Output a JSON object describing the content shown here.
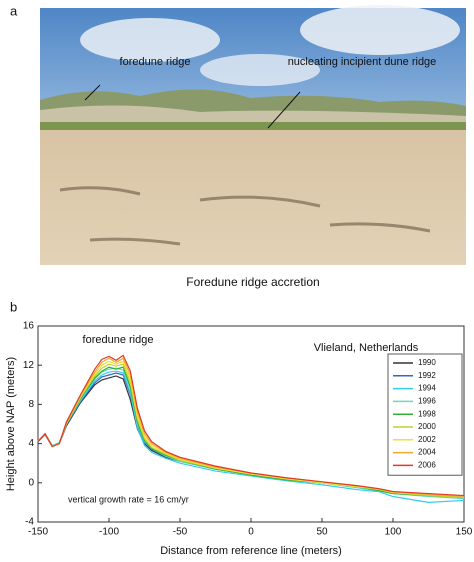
{
  "panel_a": {
    "label": "a",
    "annotations": [
      "foredune ridge",
      "nucleating incipient dune ridge"
    ],
    "caption": "Foredune ridge accretion"
  },
  "chart_data": {
    "type": "line",
    "panel_label": "b",
    "x_label": "Distance from reference line (meters)",
    "y_label": "Height above NAP (meters)",
    "annotations": [
      "foredune ridge",
      "Vlieland, Netherlands",
      "vertical growth rate = 16 cm/yr"
    ],
    "xlim": [
      -150,
      150
    ],
    "xticks": [
      -150,
      -100,
      -50,
      0,
      50,
      100,
      150
    ],
    "ylim": [
      -4,
      16
    ],
    "yticks": [
      -4,
      0,
      4,
      8,
      12,
      16
    ],
    "legend": "right",
    "x": [
      -150,
      -145,
      -140,
      -135,
      -130,
      -120,
      -110,
      -105,
      -100,
      -95,
      -90,
      -85,
      -80,
      -75,
      -70,
      -60,
      -50,
      -25,
      0,
      25,
      50,
      75,
      90,
      100,
      125,
      150
    ],
    "series": [
      {
        "name": "1990",
        "color": "#333333",
        "values": [
          4.2,
          5.0,
          3.8,
          4.0,
          5.8,
          8.2,
          10.0,
          10.5,
          10.7,
          10.9,
          10.6,
          8.5,
          5.5,
          4.0,
          3.3,
          2.6,
          2.2,
          1.4,
          0.8,
          0.4,
          0.0,
          -0.4,
          -0.7,
          -1.0,
          -1.3,
          -1.5
        ]
      },
      {
        "name": "1992",
        "color": "#3366cc",
        "values": [
          4.2,
          4.9,
          3.7,
          4.0,
          5.9,
          8.3,
          10.2,
          10.8,
          11.0,
          11.2,
          11.0,
          9.0,
          5.8,
          4.1,
          3.4,
          2.7,
          2.2,
          1.4,
          0.8,
          0.3,
          0.0,
          -0.5,
          -0.8,
          -1.1,
          -1.3,
          -1.6
        ]
      },
      {
        "name": "1994",
        "color": "#33ccee",
        "values": [
          4.3,
          4.9,
          3.8,
          4.1,
          6.0,
          8.4,
          10.4,
          11.0,
          11.3,
          11.4,
          11.2,
          9.2,
          5.6,
          3.8,
          3.1,
          2.5,
          2.0,
          1.2,
          0.7,
          0.2,
          -0.2,
          -0.7,
          -0.9,
          -1.4,
          -2.0,
          -1.8
        ]
      },
      {
        "name": "1996",
        "color": "#66d9c0",
        "values": [
          4.3,
          5.0,
          3.8,
          4.1,
          6.0,
          8.5,
          10.6,
          11.3,
          11.6,
          11.7,
          11.5,
          9.6,
          6.0,
          4.2,
          3.5,
          2.7,
          2.2,
          1.4,
          0.8,
          0.3,
          0.0,
          -0.5,
          -0.8,
          -1.1,
          -1.4,
          -1.6
        ]
      },
      {
        "name": "1998",
        "color": "#33b033",
        "values": [
          4.2,
          5.0,
          3.7,
          4.0,
          6.0,
          8.6,
          10.7,
          11.4,
          11.8,
          11.6,
          11.8,
          9.8,
          6.2,
          4.3,
          3.5,
          2.8,
          2.3,
          1.4,
          0.8,
          0.3,
          0.0,
          -0.4,
          -0.8,
          -1.1,
          -1.3,
          -1.5
        ]
      },
      {
        "name": "2000",
        "color": "#b8d630",
        "values": [
          4.2,
          5.0,
          3.7,
          4.0,
          6.0,
          8.7,
          10.9,
          11.7,
          12.1,
          11.9,
          12.1,
          10.2,
          6.5,
          4.5,
          3.6,
          2.9,
          2.3,
          1.5,
          0.9,
          0.4,
          0.0,
          -0.4,
          -0.7,
          -1.0,
          -1.3,
          -1.5
        ]
      },
      {
        "name": "2002",
        "color": "#f2e033",
        "values": [
          4.2,
          5.0,
          3.7,
          4.0,
          6.1,
          8.8,
          11.1,
          12.0,
          12.4,
          12.1,
          12.4,
          10.6,
          6.8,
          4.7,
          3.8,
          3.0,
          2.4,
          1.5,
          0.9,
          0.4,
          0.0,
          -0.4,
          -0.6,
          -1.0,
          -1.2,
          -1.4
        ]
      },
      {
        "name": "2004",
        "color": "#f2a830",
        "values": [
          4.2,
          5.0,
          3.7,
          4.0,
          6.1,
          8.9,
          11.3,
          12.3,
          12.7,
          12.3,
          12.7,
          11.0,
          7.2,
          5.0,
          4.0,
          3.1,
          2.5,
          1.6,
          1.0,
          0.5,
          0.1,
          -0.3,
          -0.6,
          -0.9,
          -1.2,
          -1.4
        ]
      },
      {
        "name": "2006",
        "color": "#e03a26",
        "values": [
          4.2,
          5.0,
          3.7,
          4.0,
          6.2,
          9.0,
          11.6,
          12.6,
          12.9,
          12.5,
          13.0,
          11.4,
          7.6,
          5.3,
          4.2,
          3.2,
          2.6,
          1.7,
          1.0,
          0.5,
          0.1,
          -0.3,
          -0.6,
          -0.9,
          -1.1,
          -1.3
        ]
      }
    ]
  }
}
